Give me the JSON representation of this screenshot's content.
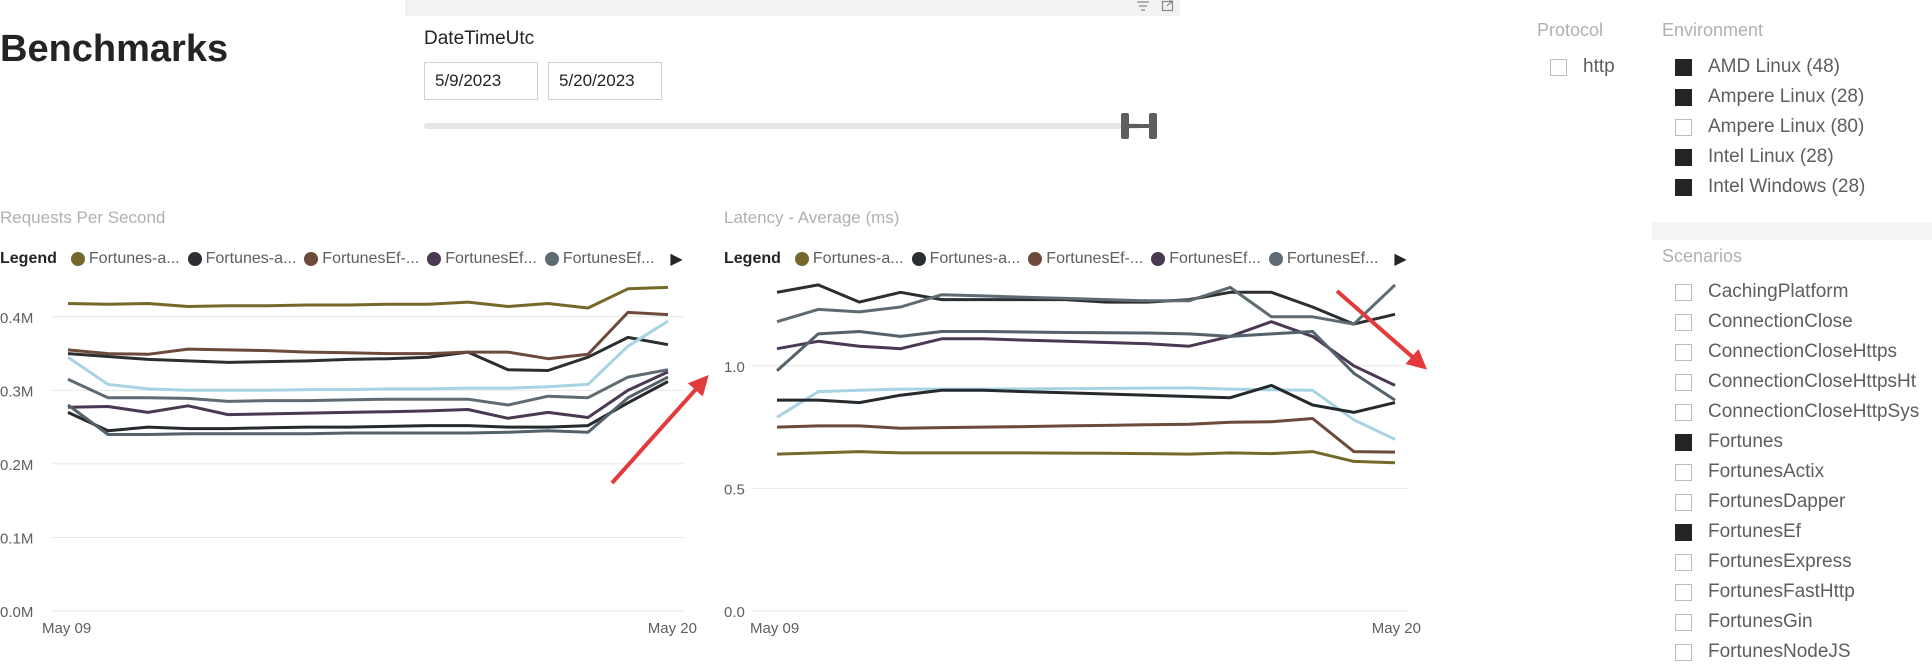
{
  "page": {
    "title": "Benchmarks"
  },
  "date_slicer": {
    "label": "DateTimeUtc",
    "start": "5/9/2023",
    "end": "5/20/2023"
  },
  "protocol": {
    "title": "Protocol",
    "items": [
      {
        "label": "http",
        "checked": false
      }
    ]
  },
  "environment": {
    "title": "Environment",
    "items": [
      {
        "label": "AMD Linux (48)",
        "checked": true
      },
      {
        "label": "Ampere Linux (28)",
        "checked": true
      },
      {
        "label": "Ampere Linux (80)",
        "checked": false
      },
      {
        "label": "Intel Linux (28)",
        "checked": true
      },
      {
        "label": "Intel Windows (28)",
        "checked": true
      }
    ]
  },
  "scenarios": {
    "title": "Scenarios",
    "items": [
      {
        "label": "CachingPlatform",
        "checked": false
      },
      {
        "label": "ConnectionClose",
        "checked": false
      },
      {
        "label": "ConnectionCloseHttps",
        "checked": false
      },
      {
        "label": "ConnectionCloseHttpsHt",
        "checked": false
      },
      {
        "label": "ConnectionCloseHttpSys",
        "checked": false
      },
      {
        "label": "Fortunes",
        "checked": true
      },
      {
        "label": "FortunesActix",
        "checked": false
      },
      {
        "label": "FortunesDapper",
        "checked": false
      },
      {
        "label": "FortunesEf",
        "checked": true
      },
      {
        "label": "FortunesExpress",
        "checked": false
      },
      {
        "label": "FortunesFastHttp",
        "checked": false
      },
      {
        "label": "FortunesGin",
        "checked": false
      },
      {
        "label": "FortunesNodeJS",
        "checked": false
      }
    ]
  },
  "colors": {
    "line_colors": [
      "#74692b",
      "#2b2f31",
      "#6e4a3c",
      "#4b3852",
      "#5f6b73",
      "#a8d3e3",
      "#252a2e",
      "#53626b"
    ],
    "arrow": "#e33b3b",
    "grid": "#e8e8e8"
  },
  "chart_data": [
    {
      "type": "line",
      "title": "Requests Per Second",
      "legend_title": "Legend",
      "legend": [
        "Fortunes-a...",
        "Fortunes-a...",
        "FortunesEf-...",
        "FortunesEf...",
        "FortunesEf..."
      ],
      "x_start_label": "May 09",
      "x_end_label": "May 20",
      "ylim": [
        0,
        0.45
      ],
      "y_ticks": [
        0,
        0.1,
        0.2,
        0.3,
        0.4
      ],
      "y_tick_labels": [
        "0.0M",
        "0.1M",
        "0.2M",
        "0.3M",
        "0.4M"
      ],
      "x_index": [
        0,
        1,
        2,
        3,
        4,
        5,
        6,
        7,
        8,
        9,
        10,
        11,
        12,
        13,
        14,
        15
      ],
      "series": [
        {
          "values": [
            0.418,
            0.417,
            0.418,
            0.414,
            0.415,
            0.415,
            0.416,
            0.416,
            0.417,
            0.417,
            0.42,
            0.414,
            0.418,
            0.412,
            0.438,
            0.44
          ]
        },
        {
          "values": [
            0.35,
            0.346,
            0.342,
            0.34,
            0.338,
            0.339,
            0.34,
            0.342,
            0.343,
            0.345,
            0.352,
            0.328,
            0.327,
            0.345,
            0.372,
            0.362
          ]
        },
        {
          "values": [
            0.355,
            0.35,
            0.349,
            0.356,
            0.355,
            0.354,
            0.352,
            0.351,
            0.35,
            0.35,
            0.352,
            0.352,
            0.343,
            0.349,
            0.406,
            0.403
          ]
        },
        {
          "values": [
            0.277,
            0.278,
            0.27,
            0.279,
            0.267,
            0.268,
            0.269,
            0.27,
            0.271,
            0.272,
            0.274,
            0.262,
            0.27,
            0.263,
            0.3,
            0.325
          ]
        },
        {
          "values": [
            0.315,
            0.29,
            0.29,
            0.289,
            0.285,
            0.286,
            0.286,
            0.287,
            0.288,
            0.288,
            0.288,
            0.28,
            0.292,
            0.29,
            0.318,
            0.328
          ]
        },
        {
          "values": [
            0.345,
            0.308,
            0.302,
            0.3,
            0.3,
            0.3,
            0.301,
            0.301,
            0.302,
            0.302,
            0.303,
            0.303,
            0.305,
            0.308,
            0.36,
            0.394
          ]
        },
        {
          "values": [
            0.27,
            0.245,
            0.25,
            0.248,
            0.248,
            0.249,
            0.25,
            0.25,
            0.251,
            0.252,
            0.252,
            0.25,
            0.25,
            0.252,
            0.283,
            0.312
          ]
        },
        {
          "values": [
            0.28,
            0.24,
            0.24,
            0.241,
            0.241,
            0.241,
            0.241,
            0.242,
            0.242,
            0.242,
            0.242,
            0.243,
            0.245,
            0.243,
            0.29,
            0.318
          ]
        }
      ]
    },
    {
      "type": "line",
      "title": "Latency - Average (ms)",
      "legend_title": "Legend",
      "legend": [
        "Fortunes-a...",
        "Fortunes-a...",
        "FortunesEf-...",
        "FortunesEf...",
        "FortunesEf..."
      ],
      "x_start_label": "May 09",
      "x_end_label": "May 20",
      "ylim": [
        0,
        1.35
      ],
      "y_ticks": [
        0,
        0.5,
        1.0
      ],
      "y_tick_labels": [
        "0.0",
        "0.5",
        "1.0"
      ],
      "x_index": [
        0,
        1,
        2,
        3,
        4,
        5,
        6,
        7,
        8,
        9,
        10,
        11,
        12,
        13,
        14,
        15
      ],
      "series": [
        {
          "values": [
            0.64,
            0.645,
            0.65,
            0.645,
            0.645,
            0.645,
            0.645,
            0.644,
            0.643,
            0.642,
            0.64,
            0.645,
            0.642,
            0.65,
            0.61,
            0.605
          ]
        },
        {
          "values": [
            1.3,
            1.33,
            1.26,
            1.3,
            1.27,
            1.27,
            1.27,
            1.27,
            1.26,
            1.26,
            1.27,
            1.3,
            1.3,
            1.24,
            1.17,
            1.21
          ]
        },
        {
          "values": [
            0.75,
            0.755,
            0.755,
            0.745,
            0.748,
            0.75,
            0.752,
            0.755,
            0.757,
            0.76,
            0.762,
            0.77,
            0.772,
            0.785,
            0.65,
            0.648
          ]
        },
        {
          "values": [
            1.07,
            1.1,
            1.08,
            1.07,
            1.11,
            1.11,
            1.105,
            1.1,
            1.095,
            1.09,
            1.08,
            1.12,
            1.18,
            1.12,
            1.0,
            0.92
          ]
        },
        {
          "values": [
            1.18,
            1.23,
            1.22,
            1.24,
            1.29,
            1.285,
            1.28,
            1.275,
            1.27,
            1.265,
            1.265,
            1.32,
            1.2,
            1.2,
            1.17,
            1.33
          ]
        },
        {
          "values": [
            0.79,
            0.895,
            0.9,
            0.905,
            0.905,
            0.905,
            0.906,
            0.907,
            0.908,
            0.909,
            0.91,
            0.905,
            0.902,
            0.9,
            0.78,
            0.7
          ]
        },
        {
          "values": [
            0.86,
            0.86,
            0.85,
            0.88,
            0.9,
            0.9,
            0.895,
            0.89,
            0.885,
            0.88,
            0.875,
            0.87,
            0.92,
            0.84,
            0.81,
            0.85
          ]
        },
        {
          "values": [
            0.98,
            1.13,
            1.14,
            1.12,
            1.14,
            1.14,
            1.138,
            1.136,
            1.135,
            1.134,
            1.13,
            1.12,
            1.13,
            1.14,
            0.97,
            0.86
          ]
        }
      ]
    }
  ]
}
